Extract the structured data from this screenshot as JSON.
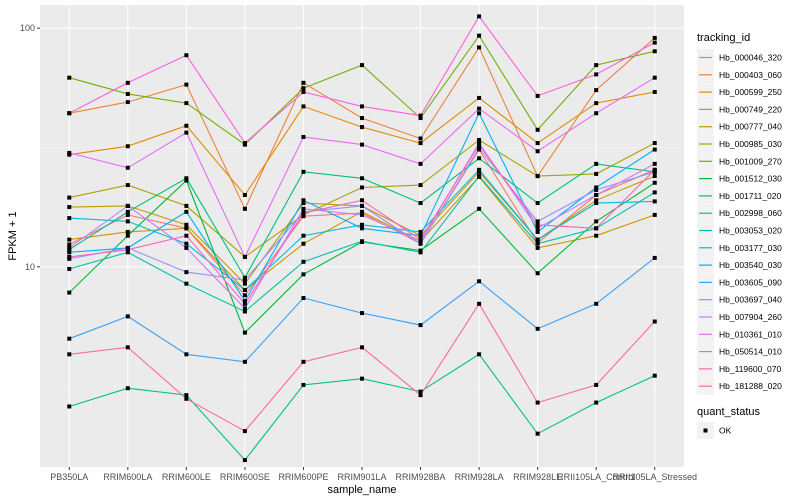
{
  "chart_data": {
    "type": "line",
    "title": "",
    "xlabel": "sample_name",
    "ylabel": "FPKM + 1",
    "y_scale": "log10",
    "ylim": [
      1.45,
      125
    ],
    "y_ticks": [
      10,
      100
    ],
    "y_tick_labels": [
      "10",
      "100"
    ],
    "grid": true,
    "legend_position": "right",
    "categories": [
      "PB350LA",
      "RRIM600LA",
      "RRIM600LE",
      "RRIM600SE",
      "RRIM600PE",
      "RRIM901LA",
      "RRIM928BA",
      "RRIM928LA",
      "RRIM928LE",
      "RRII105LA_Control",
      "RRII105LA_Stressed"
    ],
    "legend": {
      "color_title": "tracking_id",
      "shape_title": "quant_status",
      "shape_entries": [
        {
          "label": "OK",
          "shape": "square"
        }
      ]
    },
    "series": [
      {
        "name": "Hb_000046_320",
        "color": "#F8766D",
        "values": [
          12.4,
          16.5,
          14.5,
          7.6,
          16.3,
          16.8,
          12.5,
          31.0,
          12.6,
          20.0,
          25.5
        ]
      },
      {
        "name": "Hb_000403_060",
        "color": "#EC823C",
        "values": [
          44.0,
          49.0,
          58.0,
          17.5,
          59.0,
          42.0,
          34.5,
          83.0,
          24.0,
          55.0,
          91.0
        ]
      },
      {
        "name": "Hb_000599_250",
        "color": "#DF8D00",
        "values": [
          29.5,
          32.0,
          39.0,
          20.0,
          47.0,
          38.5,
          33.0,
          51.0,
          33.0,
          48.5,
          54.0
        ]
      },
      {
        "name": "Hb_000749_220",
        "color": "#D09400",
        "values": [
          13.0,
          14.0,
          14.5,
          8.0,
          12.5,
          17.0,
          12.8,
          23.8,
          12.0,
          13.5,
          16.5
        ]
      },
      {
        "name": "Hb_000777_040",
        "color": "#BF9C00",
        "values": [
          17.8,
          18.0,
          15.0,
          8.5,
          18.5,
          18.0,
          13.5,
          25.0,
          13.0,
          19.0,
          24.0
        ]
      },
      {
        "name": "Hb_000985_030",
        "color": "#A8A400",
        "values": [
          19.5,
          22.0,
          18.0,
          11.0,
          16.5,
          21.5,
          22.0,
          34.0,
          24.0,
          24.5,
          33.0
        ]
      },
      {
        "name": "Hb_001009_270",
        "color": "#6FB000",
        "values": [
          62.0,
          53.0,
          48.5,
          32.5,
          56.0,
          70.0,
          42.0,
          93.0,
          37.5,
          70.0,
          80.0
        ]
      },
      {
        "name": "Hb_001512_030",
        "color": "#00BA38",
        "values": [
          7.8,
          13.5,
          23.0,
          5.3,
          9.3,
          12.7,
          11.7,
          17.5,
          9.4,
          15.5,
          22.5
        ]
      },
      {
        "name": "Hb_001711_020",
        "color": "#00BF7D",
        "values": [
          11.8,
          17.0,
          23.5,
          9.0,
          25.0,
          23.5,
          18.5,
          28.5,
          18.5,
          27.0,
          25.0
        ]
      },
      {
        "name": "Hb_002998_060",
        "color": "#00C08B",
        "values": [
          2.6,
          3.1,
          2.9,
          1.55,
          3.2,
          3.4,
          3.0,
          4.3,
          2.0,
          2.7,
          3.5
        ]
      },
      {
        "name": "Hb_003053_020",
        "color": "#00C1AA",
        "values": [
          9.8,
          11.5,
          8.5,
          6.5,
          10.5,
          12.8,
          11.5,
          24.0,
          12.5,
          14.5,
          20.5
        ]
      },
      {
        "name": "Hb_003177_030",
        "color": "#00BCD8",
        "values": [
          16.0,
          15.5,
          12.5,
          8.0,
          13.5,
          15.0,
          14.0,
          25.5,
          13.0,
          18.5,
          18.8
        ]
      },
      {
        "name": "Hb_003540_030",
        "color": "#00B0F6",
        "values": [
          11.5,
          12.0,
          17.0,
          7.2,
          19.0,
          14.5,
          13.5,
          44.0,
          14.0,
          21.5,
          31.0
        ]
      },
      {
        "name": "Hb_003605_090",
        "color": "#35A2FF",
        "values": [
          5.0,
          6.2,
          4.3,
          4.0,
          7.4,
          6.4,
          5.7,
          8.7,
          5.5,
          7.0,
          10.9
        ]
      },
      {
        "name": "Hb_003697_040",
        "color": "#9590FF",
        "values": [
          10.8,
          12.0,
          9.5,
          8.8,
          17.0,
          18.0,
          12.5,
          31.5,
          15.5,
          21.0,
          25.0
        ]
      },
      {
        "name": "Hb_007904_260",
        "color": "#C77CFF",
        "values": [
          12.0,
          18.0,
          12.0,
          6.7,
          17.5,
          16.5,
          12.8,
          33.0,
          14.5,
          20.0,
          27.0
        ]
      },
      {
        "name": "Hb_010361_010",
        "color": "#E76BF3",
        "values": [
          30.0,
          26.0,
          36.5,
          11.0,
          35.0,
          32.5,
          27.0,
          46.0,
          30.5,
          44.0,
          62.0
        ]
      },
      {
        "name": "Hb_050514_010",
        "color": "#FA62DB",
        "values": [
          44.0,
          59.0,
          77.0,
          33.0,
          54.0,
          47.0,
          43.0,
          112.0,
          52.0,
          64.0,
          87.0
        ]
      },
      {
        "name": "Hb_119600_070",
        "color": "#FF62BC",
        "values": [
          11.0,
          11.8,
          13.5,
          7.0,
          16.8,
          19.0,
          13.0,
          32.5,
          15.0,
          14.5,
          25.5
        ]
      },
      {
        "name": "Hb_181288_020",
        "color": "#FF6C91",
        "values": [
          4.3,
          4.6,
          2.8,
          2.05,
          4.0,
          4.6,
          2.9,
          7.0,
          2.7,
          3.2,
          5.9
        ]
      }
    ]
  }
}
